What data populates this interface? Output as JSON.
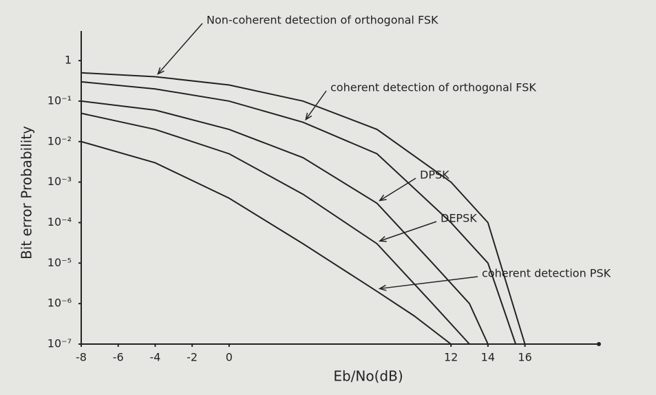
{
  "chart_data": {
    "type": "line",
    "y_label": "Bit error Probability",
    "x_label": "Eb/No(dB)",
    "xlim": [
      -8,
      20
    ],
    "xticks": [
      -8,
      -6,
      -4,
      -2,
      0,
      12,
      14,
      16
    ],
    "ylim": [
      1e-07,
      3
    ],
    "y_log": true,
    "grid": false,
    "yticks": [
      1,
      {
        "value": 0.1,
        "label": "10⁻¹"
      },
      {
        "value": 0.01,
        "label": "10⁻²"
      },
      {
        "value": 0.001,
        "label": "10⁻³"
      },
      {
        "value": 0.0001,
        "label": "10⁻⁴"
      },
      {
        "value": 1e-05,
        "label": "10⁻⁵"
      },
      {
        "value": 1e-06,
        "label": "10⁻⁶"
      },
      {
        "value": 1e-07,
        "label": "10⁻⁷"
      }
    ],
    "series": [
      {
        "name": "Non-coherent detection of orthogonal FSK",
        "color": "#222222",
        "x": [
          -8,
          -4,
          0,
          4,
          8,
          12,
          14,
          16
        ],
        "values": [
          0.5,
          0.4,
          0.25,
          0.1,
          0.02,
          0.001,
          0.0001,
          1e-07
        ]
      },
      {
        "name": "coherent detection of orthogonal FSK",
        "color": "#222222",
        "x": [
          -8,
          -4,
          0,
          4,
          8,
          12,
          14,
          15.5
        ],
        "values": [
          0.3,
          0.2,
          0.1,
          0.03,
          0.005,
          0.0001,
          1e-05,
          1e-07
        ]
      },
      {
        "name": "DPSK",
        "color": "#222222",
        "x": [
          -8,
          -4,
          0,
          4,
          8,
          11,
          13,
          14
        ],
        "values": [
          0.1,
          0.06,
          0.02,
          0.004,
          0.0003,
          1e-05,
          1e-06,
          1e-07
        ]
      },
      {
        "name": "DEPSK",
        "color": "#222222",
        "x": [
          -8,
          -4,
          0,
          4,
          8,
          11,
          13
        ],
        "values": [
          0.05,
          0.02,
          0.005,
          0.0005,
          3e-05,
          1e-06,
          1e-07
        ]
      },
      {
        "name": "coherent detection PSK",
        "color": "#222222",
        "x": [
          -8,
          -4,
          0,
          4,
          8,
          10,
          12
        ],
        "values": [
          0.01,
          0.003,
          0.0004,
          3e-05,
          2e-06,
          5e-07,
          1e-07
        ]
      }
    ]
  }
}
